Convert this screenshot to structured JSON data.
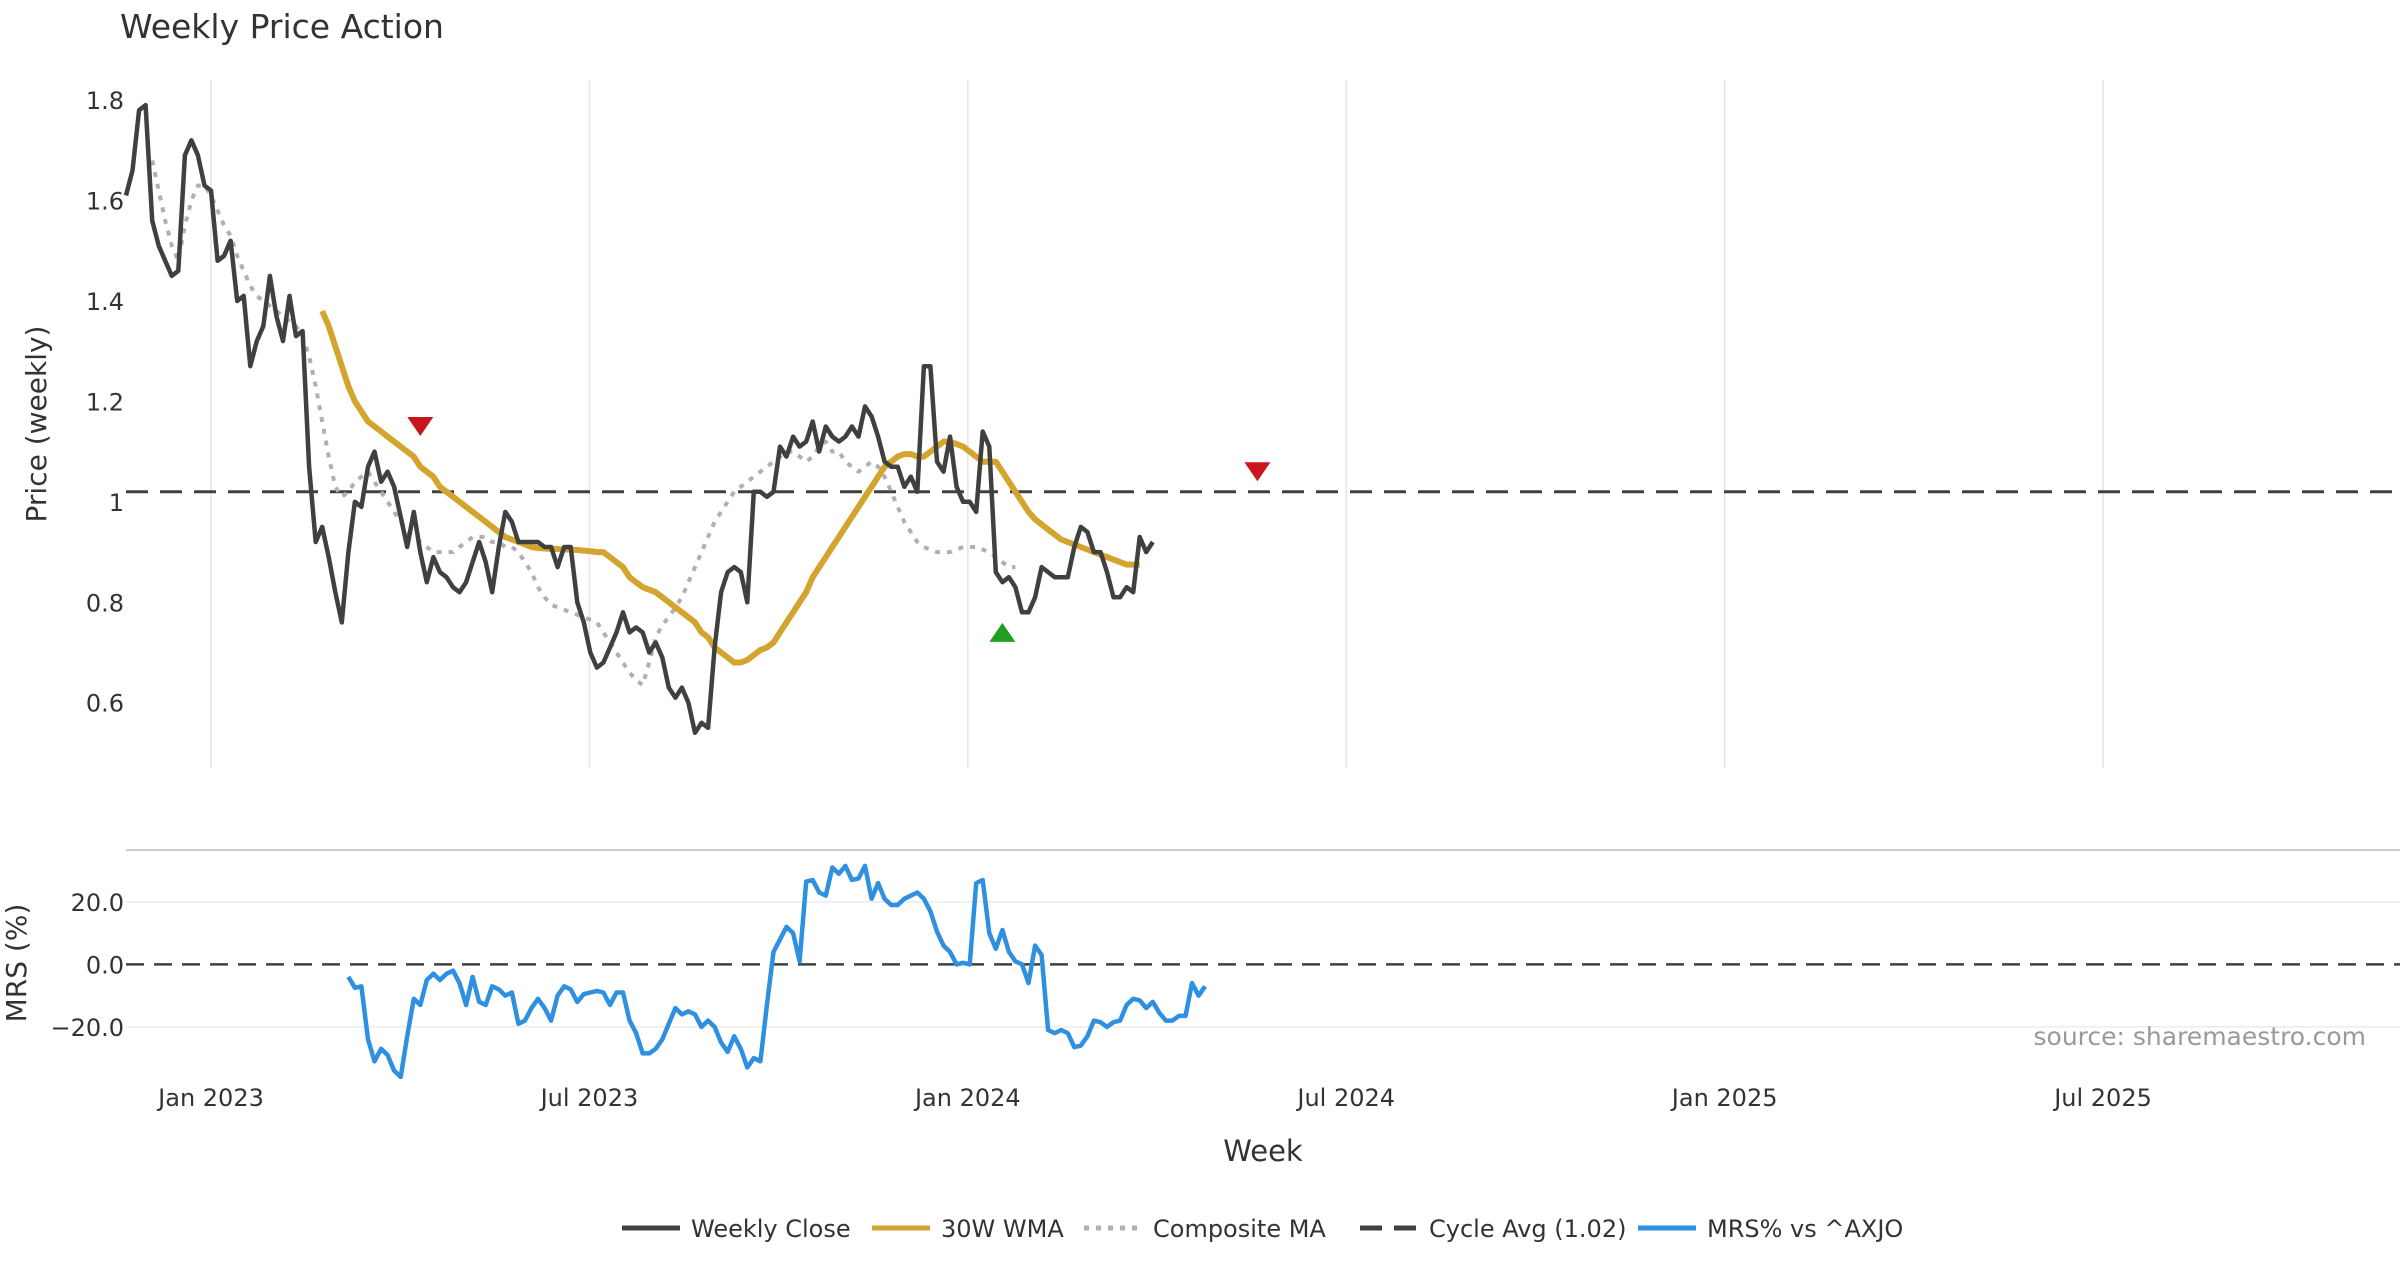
{
  "chart_data": {
    "type": "line",
    "title": "Weekly Price Action",
    "xlabel": "Week",
    "x_ticks": [
      "Jan 2023",
      "Jul 2023",
      "Jan 2024",
      "Jul 2024",
      "Jan 2025",
      "Jul 2025"
    ],
    "price_panel": {
      "ylabel": "Price (weekly)",
      "ylim": [
        0.47,
        1.84
      ],
      "y_ticks": [
        "1.8",
        "1.6",
        "1.4",
        "1.2",
        "1",
        "0.8",
        "0.6"
      ],
      "y_tick_values": [
        1.8,
        1.6,
        1.4,
        1.2,
        1.0,
        0.8,
        0.6
      ],
      "grid": "vertical"
    },
    "mrs_panel": {
      "ylabel": "MRS (%)",
      "ylim": [
        -37,
        35
      ],
      "y_ticks": [
        "20.0",
        "0.0",
        "−20.0"
      ],
      "y_tick_values": [
        20,
        0,
        -20
      ],
      "zero_line": 0
    },
    "source_note": "source: sharemaestro.com",
    "legend_position": "bottom-center",
    "legend": [
      {
        "label": "Weekly Close",
        "color": "#404040",
        "style": "solid"
      },
      {
        "label": "30W WMA",
        "color": "#d4a52e",
        "style": "solid"
      },
      {
        "label": "Composite MA",
        "color": "#b0b0b0",
        "style": "dotted"
      },
      {
        "label": "Cycle Avg (1.02)",
        "color": "#404040",
        "style": "dashed"
      },
      {
        "label": "MRS% vs ^AXJO",
        "color": "#2f8fe0",
        "style": "solid"
      }
    ],
    "cycle_avg": 1.02,
    "series": [
      {
        "name": "Weekly Close",
        "start_week": 0,
        "values": [
          1.61,
          1.66,
          1.78,
          1.79,
          1.56,
          1.51,
          1.48,
          1.45,
          1.46,
          1.69,
          1.72,
          1.69,
          1.63,
          1.62,
          1.48,
          1.49,
          1.52,
          1.4,
          1.41,
          1.27,
          1.32,
          1.35,
          1.45,
          1.37,
          1.32,
          1.41,
          1.33,
          1.34,
          1.07,
          0.92,
          0.95,
          0.89,
          0.82,
          0.76,
          0.9,
          1.0,
          0.99,
          1.07,
          1.1,
          1.04,
          1.06,
          1.03,
          0.97,
          0.91,
          0.98,
          0.9,
          0.84,
          0.89,
          0.86,
          0.85,
          0.83,
          0.82,
          0.84,
          0.88,
          0.92,
          0.88,
          0.82,
          0.91,
          0.98,
          0.96,
          0.92,
          0.92,
          0.92,
          0.92,
          0.91,
          0.91,
          0.87,
          0.91,
          0.91,
          0.8,
          0.76,
          0.7,
          0.67,
          0.68,
          0.71,
          0.74,
          0.78,
          0.74,
          0.75,
          0.74,
          0.7,
          0.72,
          0.69,
          0.63,
          0.61,
          0.63,
          0.6,
          0.54,
          0.56,
          0.55,
          0.71,
          0.82,
          0.86,
          0.87,
          0.86,
          0.8,
          1.02,
          1.02,
          1.01,
          1.02,
          1.11,
          1.09,
          1.13,
          1.11,
          1.12,
          1.16,
          1.1,
          1.15,
          1.13,
          1.12,
          1.13,
          1.15,
          1.13,
          1.19,
          1.17,
          1.13,
          1.08,
          1.07,
          1.07,
          1.03,
          1.05,
          1.02,
          1.27,
          1.27,
          1.08,
          1.06,
          1.13,
          1.03,
          1.0,
          1.0,
          0.98,
          1.14,
          1.11,
          0.86,
          0.84,
          0.85,
          0.83,
          0.78,
          0.78,
          0.81,
          0.87,
          0.86,
          0.85,
          0.85,
          0.85,
          0.91,
          0.95,
          0.94,
          0.9,
          0.9,
          0.86,
          0.81,
          0.81,
          0.83,
          0.82,
          0.93,
          0.9,
          0.92
        ]
      },
      {
        "name": "30W WMA",
        "start_week": 30,
        "values": [
          1.38,
          1.35,
          1.31,
          1.27,
          1.23,
          1.2,
          1.18,
          1.16,
          1.15,
          1.14,
          1.13,
          1.12,
          1.11,
          1.1,
          1.09,
          1.07,
          1.06,
          1.05,
          1.03,
          1.02,
          1.01,
          1.0,
          0.99,
          0.98,
          0.97,
          0.96,
          0.95,
          0.94,
          0.93,
          0.925,
          0.92,
          0.915,
          0.91,
          0.908,
          0.907,
          0.906,
          0.906,
          0.905,
          0.905,
          0.904,
          0.903,
          0.902,
          0.9,
          0.9,
          0.89,
          0.88,
          0.87,
          0.85,
          0.84,
          0.83,
          0.825,
          0.82,
          0.81,
          0.8,
          0.79,
          0.78,
          0.77,
          0.76,
          0.74,
          0.73,
          0.71,
          0.7,
          0.69,
          0.68,
          0.68,
          0.685,
          0.695,
          0.705,
          0.71,
          0.72,
          0.74,
          0.76,
          0.78,
          0.8,
          0.82,
          0.85,
          0.87,
          0.89,
          0.91,
          0.93,
          0.95,
          0.97,
          0.99,
          1.01,
          1.03,
          1.05,
          1.07,
          1.08,
          1.09,
          1.095,
          1.095,
          1.09,
          1.09,
          1.1,
          1.11,
          1.12,
          1.12,
          1.115,
          1.11,
          1.1,
          1.09,
          1.08,
          1.08,
          1.08,
          1.06,
          1.04,
          1.02,
          1.0,
          0.98,
          0.965,
          0.955,
          0.945,
          0.935,
          0.925,
          0.92,
          0.915,
          0.91,
          0.905,
          0.9,
          0.895,
          0.89,
          0.885,
          0.88,
          0.875,
          0.875,
          0.875
        ]
      },
      {
        "name": "Composite MA",
        "start_week": 4,
        "values": [
          1.68,
          1.62,
          1.56,
          1.51,
          1.48,
          1.55,
          1.6,
          1.63,
          1.63,
          1.61,
          1.58,
          1.55,
          1.53,
          1.49,
          1.46,
          1.43,
          1.41,
          1.4,
          1.39,
          1.38,
          1.37,
          1.36,
          1.35,
          1.33,
          1.29,
          1.23,
          1.16,
          1.09,
          1.03,
          1.01,
          1.02,
          1.04,
          1.05,
          1.06,
          1.04,
          1.02,
          1.0,
          0.98,
          0.96,
          0.94,
          0.93,
          0.92,
          0.91,
          0.9,
          0.9,
          0.9,
          0.9,
          0.91,
          0.92,
          0.93,
          0.93,
          0.93,
          0.92,
          0.92,
          0.91,
          0.91,
          0.9,
          0.88,
          0.86,
          0.83,
          0.81,
          0.795,
          0.79,
          0.785,
          0.78,
          0.775,
          0.77,
          0.765,
          0.76,
          0.74,
          0.72,
          0.7,
          0.68,
          0.66,
          0.645,
          0.635,
          0.68,
          0.73,
          0.755,
          0.77,
          0.79,
          0.81,
          0.84,
          0.87,
          0.9,
          0.93,
          0.96,
          0.98,
          1.0,
          1.02,
          1.03,
          1.04,
          1.05,
          1.06,
          1.07,
          1.08,
          1.09,
          1.1,
          1.1,
          1.09,
          1.08,
          1.09,
          1.11,
          1.12,
          1.1,
          1.1,
          1.08,
          1.07,
          1.06,
          1.07,
          1.08,
          1.07,
          1.05,
          1.02,
          0.99,
          0.96,
          0.94,
          0.92,
          0.91,
          0.905,
          0.9,
          0.9,
          0.9,
          0.905,
          0.91,
          0.91,
          0.91,
          0.905,
          0.9,
          0.89,
          0.88,
          0.87,
          0.87
        ]
      },
      {
        "name": "MRS% vs ^AXJO",
        "start_week": 34,
        "values": [
          -4,
          -7.5,
          -7,
          -24,
          -31,
          -27,
          -29,
          -34,
          -36,
          -23,
          -11,
          -13,
          -5,
          -3,
          -5,
          -3,
          -2,
          -6,
          -13,
          -4,
          -12,
          -13,
          -7,
          -8,
          -10,
          -9,
          -19,
          -18,
          -14,
          -11,
          -14,
          -18,
          -10,
          -7,
          -8,
          -12,
          -9.5,
          -9,
          -8.5,
          -9,
          -13,
          -9,
          -9,
          -18,
          -22,
          -28.5,
          -28.5,
          -27,
          -24,
          -19,
          -14,
          -16,
          -15,
          -16,
          -20,
          -18,
          -20,
          -25,
          -28,
          -23,
          -27,
          -33,
          -30,
          -31,
          -13,
          4,
          8,
          12,
          10,
          1,
          26.5,
          27,
          23,
          22,
          31,
          29,
          31.5,
          27,
          27.5,
          31.5,
          21,
          26,
          21,
          19,
          19,
          21,
          22,
          23,
          21,
          17,
          10.5,
          6,
          4,
          0,
          0.5,
          0,
          26,
          27,
          10,
          5,
          11,
          4,
          1,
          0,
          -6,
          6,
          3,
          -21,
          -22,
          -21,
          -22,
          -26.5,
          -26,
          -23,
          -18,
          -18.5,
          -20,
          -18.5,
          -18,
          -13,
          -11,
          -11.5,
          -14,
          -12,
          -15.5,
          -18,
          -18,
          -16.5,
          -16.5,
          -6,
          -10,
          -7
        ]
      }
    ],
    "signals": [
      {
        "type": "sell",
        "week": 45,
        "value": 1.15,
        "color": "#c8161d"
      },
      {
        "type": "buy",
        "week": 134,
        "value": 0.74,
        "color": "#1f9e1f"
      },
      {
        "type": "sell",
        "week": 173,
        "value": 1.06,
        "color": "#c8161d"
      }
    ]
  }
}
